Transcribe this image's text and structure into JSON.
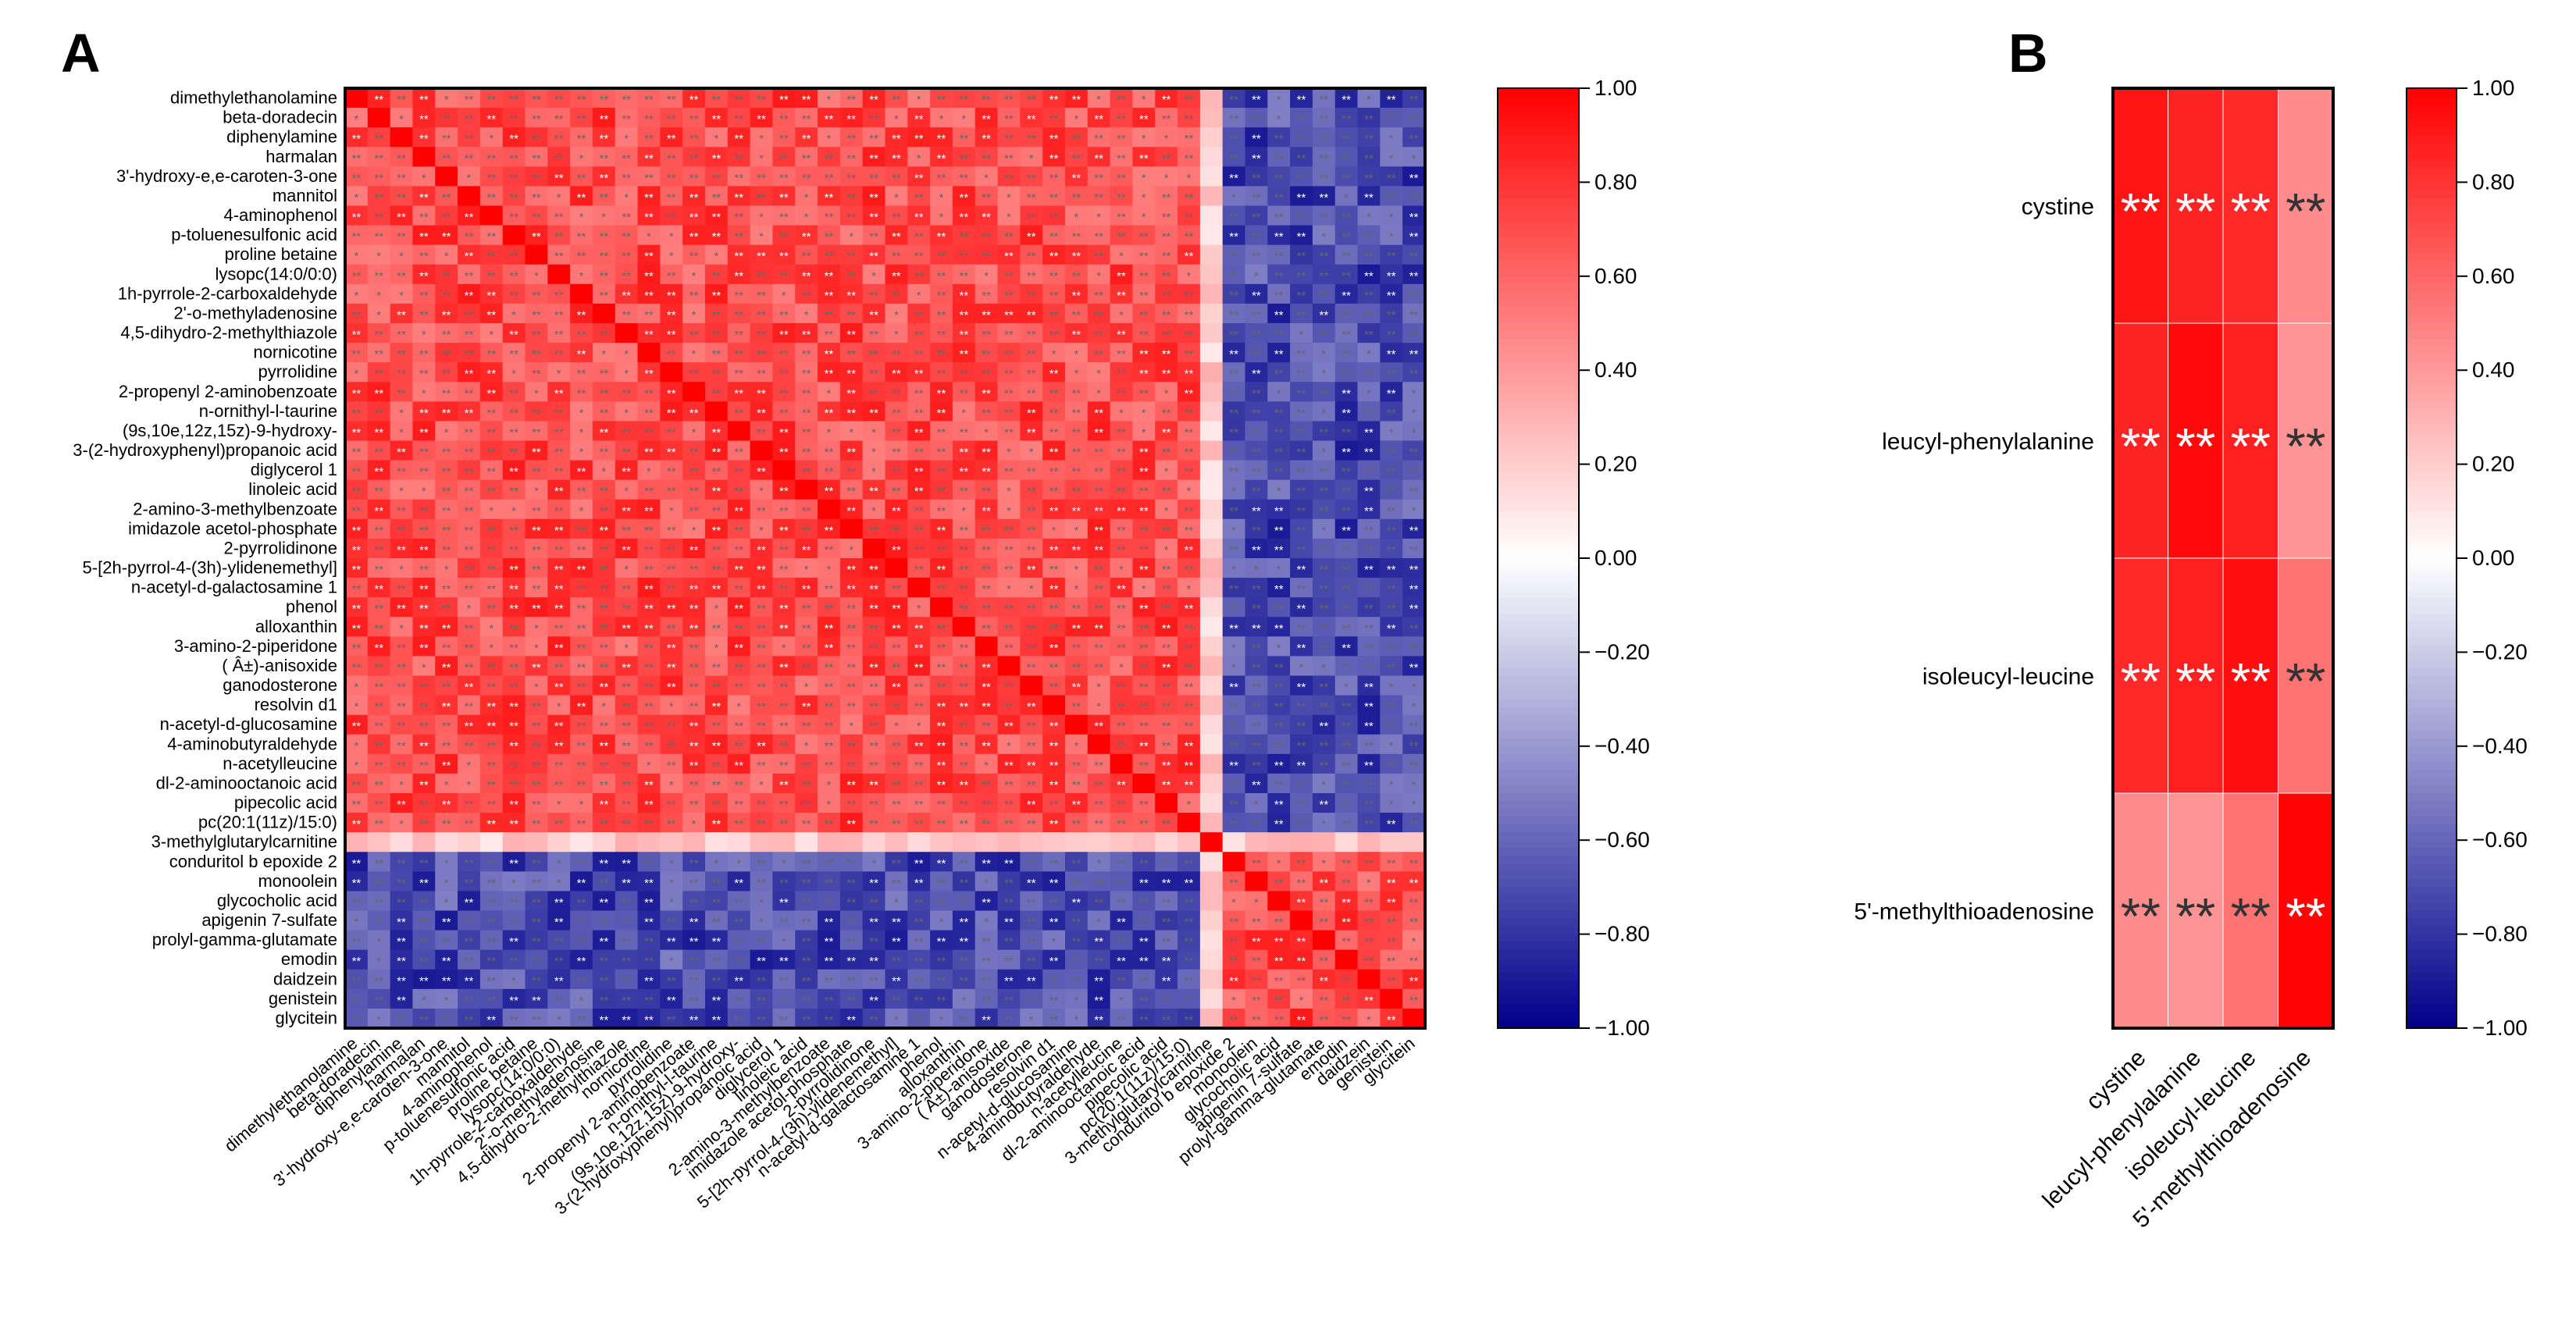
{
  "panel_labels": {
    "a": "A",
    "b": "B"
  },
  "colors": {
    "positive": "#ff0000",
    "zero": "#ffffff",
    "negative": "#00008b",
    "frame": "#000000"
  },
  "chart_data": [
    {
      "id": "A",
      "type": "heatmap",
      "title": "",
      "labels": [
        "dimethylethanolamine",
        "beta-doradecin",
        "diphenylamine",
        "harmalan",
        "3'-hydroxy-e,e-caroten-3-one",
        "mannitol",
        "4-aminophenol",
        "p-toluenesulfonic acid",
        "proline betaine",
        "lysopc(14:0/0:0)",
        "1h-pyrrole-2-carboxaldehyde",
        "2'-o-methyladenosine",
        "4,5-dihydro-2-methylthiazole",
        "nornicotine",
        "pyrrolidine",
        "2-propenyl 2-aminobenzoate",
        "n-ornithyl-l-taurine",
        "(9s,10e,12z,15z)-9-hydroxy-",
        "3-(2-hydroxyphenyl)propanoic acid",
        "diglycerol 1",
        "linoleic acid",
        "2-amino-3-methylbenzoate",
        "imidazole acetol-phosphate",
        "2-pyrrolidinone",
        "5-[2h-pyrrol-4-(3h)-ylidenemethyl]",
        "n-acetyl-d-galactosamine 1",
        "phenol",
        "alloxanthin",
        "3-amino-2-piperidone",
        "( Â±)-anisoxide",
        "ganodosterone",
        "resolvin d1",
        "n-acetyl-d-glucosamine",
        "4-aminobutyraldehyde",
        "n-acetylleucine",
        "dl-2-aminooctanoic acid",
        "pipecolic acid",
        "pc(20:1(11z)/15:0)",
        "3-methylglutarylcarnitine",
        "conduritol b epoxide 2",
        "monoolein",
        "glycocholic acid",
        "apigenin 7-sulfate",
        "prolyl-gamma-glutamate",
        "emodin",
        "daidzein",
        "genistein",
        "glycitein"
      ],
      "groups": {
        "group1_count": 38,
        "neutral_index": 38,
        "group2_count": 9
      },
      "approx_correlation": {
        "within_group": 0.7,
        "between_group": -0.7,
        "neutral_row": 0.2,
        "diagonal": 1.0
      },
      "colorbar": {
        "min": -1.0,
        "max": 1.0,
        "ticks": [
          "1.00",
          "0.80",
          "0.60",
          "0.40",
          "0.20",
          "0.00",
          "−0.20",
          "−0.40",
          "−0.60",
          "−0.80",
          "−1.00"
        ]
      }
    },
    {
      "id": "B",
      "type": "heatmap",
      "title": "",
      "labels": [
        "cystine",
        "leucyl-phenylalanine",
        "isoleucyl-leucine",
        "5'-methylthioadenosine"
      ],
      "matrix": [
        [
          0.92,
          0.86,
          0.84,
          0.45
        ],
        [
          0.86,
          0.96,
          0.88,
          0.42
        ],
        [
          0.84,
          0.88,
          0.94,
          0.55
        ],
        [
          0.45,
          0.42,
          0.55,
          0.98
        ]
      ],
      "annotations": [
        [
          "**",
          "**",
          "**",
          "**"
        ],
        [
          "**",
          "**",
          "**",
          "**"
        ],
        [
          "**",
          "**",
          "**",
          "**"
        ],
        [
          "**",
          "**",
          "**",
          "**"
        ]
      ],
      "colorbar": {
        "min": -1.0,
        "max": 1.0,
        "ticks": [
          "1.00",
          "0.80",
          "0.60",
          "0.40",
          "0.20",
          "0.00",
          "−0.20",
          "−0.40",
          "−0.60",
          "−0.80",
          "−1.00"
        ]
      }
    }
  ]
}
